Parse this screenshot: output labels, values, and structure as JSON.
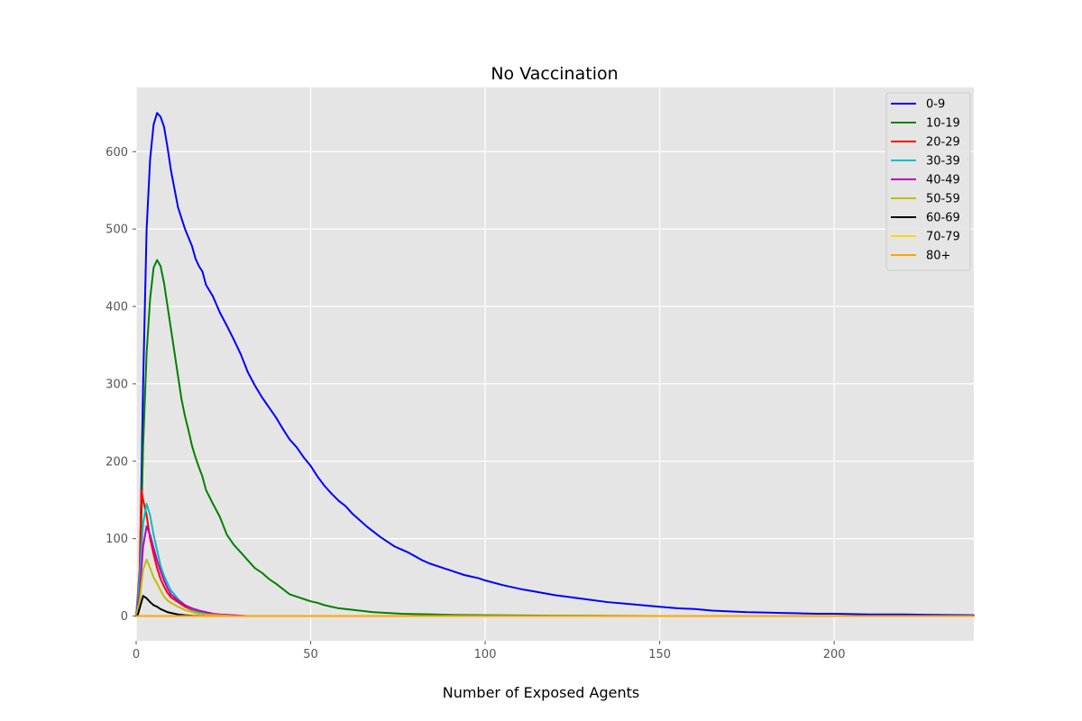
{
  "chart_data": {
    "type": "line",
    "title": "No Vaccination",
    "xlabel": "Number of Exposed Agents",
    "ylabel": "",
    "xlim": [
      0,
      240
    ],
    "ylim": [
      -32,
      683
    ],
    "xticks": [
      0,
      50,
      100,
      150,
      200
    ],
    "yticks": [
      0,
      100,
      200,
      300,
      400,
      500,
      600
    ],
    "grid": true,
    "legend_position": "upper right",
    "plot_background": "#e5e5e5",
    "series": [
      {
        "name": "0-9",
        "color": "#0000ff",
        "points": [
          [
            0,
            0
          ],
          [
            1,
            40
          ],
          [
            2,
            300
          ],
          [
            3,
            500
          ],
          [
            4,
            590
          ],
          [
            5,
            635
          ],
          [
            6,
            650
          ],
          [
            7,
            645
          ],
          [
            8,
            632
          ],
          [
            9,
            605
          ],
          [
            10,
            575
          ],
          [
            12,
            528
          ],
          [
            14,
            500
          ],
          [
            16,
            478
          ],
          [
            17,
            462
          ],
          [
            18,
            452
          ],
          [
            19,
            445
          ],
          [
            20,
            428
          ],
          [
            22,
            413
          ],
          [
            24,
            392
          ],
          [
            26,
            375
          ],
          [
            28,
            357
          ],
          [
            30,
            338
          ],
          [
            32,
            315
          ],
          [
            34,
            298
          ],
          [
            36,
            283
          ],
          [
            38,
            270
          ],
          [
            40,
            257
          ],
          [
            42,
            242
          ],
          [
            44,
            228
          ],
          [
            46,
            218
          ],
          [
            48,
            205
          ],
          [
            50,
            194
          ],
          [
            52,
            180
          ],
          [
            54,
            168
          ],
          [
            56,
            158
          ],
          [
            58,
            149
          ],
          [
            60,
            142
          ],
          [
            62,
            132
          ],
          [
            64,
            124
          ],
          [
            66,
            116
          ],
          [
            68,
            109
          ],
          [
            70,
            102
          ],
          [
            72,
            96
          ],
          [
            74,
            90
          ],
          [
            76,
            86
          ],
          [
            78,
            82
          ],
          [
            80,
            77
          ],
          [
            82,
            72
          ],
          [
            84,
            68
          ],
          [
            86,
            65
          ],
          [
            88,
            62
          ],
          [
            90,
            59
          ],
          [
            92,
            56
          ],
          [
            94,
            53
          ],
          [
            96,
            51
          ],
          [
            98,
            49
          ],
          [
            100,
            46
          ],
          [
            105,
            40
          ],
          [
            110,
            35
          ],
          [
            115,
            31
          ],
          [
            120,
            27
          ],
          [
            125,
            24
          ],
          [
            130,
            21
          ],
          [
            135,
            18
          ],
          [
            140,
            16
          ],
          [
            145,
            14
          ],
          [
            150,
            12
          ],
          [
            155,
            10
          ],
          [
            160,
            9
          ],
          [
            165,
            7
          ],
          [
            170,
            6
          ],
          [
            175,
            5
          ],
          [
            180,
            4.5
          ],
          [
            185,
            4
          ],
          [
            190,
            3.5
          ],
          [
            195,
            3
          ],
          [
            200,
            3
          ],
          [
            205,
            2.5
          ],
          [
            210,
            2
          ],
          [
            220,
            2
          ],
          [
            230,
            1.5
          ],
          [
            240,
            1
          ]
        ]
      },
      {
        "name": "10-19",
        "color": "#008000",
        "points": [
          [
            0,
            0
          ],
          [
            1,
            30
          ],
          [
            2,
            220
          ],
          [
            3,
            340
          ],
          [
            4,
            410
          ],
          [
            5,
            450
          ],
          [
            6,
            460
          ],
          [
            7,
            452
          ],
          [
            8,
            430
          ],
          [
            9,
            400
          ],
          [
            10,
            370
          ],
          [
            11,
            340
          ],
          [
            12,
            310
          ],
          [
            13,
            280
          ],
          [
            14,
            258
          ],
          [
            15,
            240
          ],
          [
            16,
            220
          ],
          [
            17,
            205
          ],
          [
            18,
            192
          ],
          [
            19,
            180
          ],
          [
            20,
            163
          ],
          [
            22,
            145
          ],
          [
            24,
            128
          ],
          [
            26,
            105
          ],
          [
            28,
            92
          ],
          [
            30,
            82
          ],
          [
            32,
            72
          ],
          [
            34,
            62
          ],
          [
            36,
            56
          ],
          [
            38,
            48
          ],
          [
            40,
            42
          ],
          [
            42,
            35
          ],
          [
            44,
            28
          ],
          [
            46,
            25
          ],
          [
            48,
            22
          ],
          [
            50,
            19
          ],
          [
            52,
            17
          ],
          [
            54,
            14
          ],
          [
            56,
            12
          ],
          [
            58,
            10
          ],
          [
            60,
            9
          ],
          [
            64,
            7
          ],
          [
            68,
            5
          ],
          [
            72,
            4
          ],
          [
            76,
            3
          ],
          [
            80,
            2.5
          ],
          [
            85,
            2
          ],
          [
            90,
            1.5
          ],
          [
            100,
            1
          ],
          [
            120,
            0.5
          ],
          [
            150,
            0
          ],
          [
            240,
            0
          ]
        ]
      },
      {
        "name": "20-29",
        "color": "#ff0000",
        "points": [
          [
            0,
            0
          ],
          [
            1,
            60
          ],
          [
            1.5,
            163
          ],
          [
            2,
            150
          ],
          [
            3,
            130
          ],
          [
            4,
            100
          ],
          [
            5,
            80
          ],
          [
            6,
            62
          ],
          [
            7,
            48
          ],
          [
            8,
            38
          ],
          [
            9,
            30
          ],
          [
            10,
            24
          ],
          [
            12,
            18
          ],
          [
            14,
            12
          ],
          [
            16,
            8
          ],
          [
            18,
            5
          ],
          [
            20,
            3
          ],
          [
            22,
            2
          ],
          [
            26,
            1
          ],
          [
            30,
            0
          ],
          [
            240,
            0
          ]
        ]
      },
      {
        "name": "30-39",
        "color": "#00bfbf",
        "points": [
          [
            0,
            0
          ],
          [
            1,
            50
          ],
          [
            2,
            120
          ],
          [
            3,
            145
          ],
          [
            4,
            130
          ],
          [
            5,
            105
          ],
          [
            6,
            85
          ],
          [
            7,
            65
          ],
          [
            8,
            52
          ],
          [
            9,
            42
          ],
          [
            10,
            33
          ],
          [
            12,
            22
          ],
          [
            14,
            14
          ],
          [
            16,
            9
          ],
          [
            18,
            5
          ],
          [
            20,
            3
          ],
          [
            22,
            2
          ],
          [
            26,
            1
          ],
          [
            30,
            0
          ],
          [
            240,
            0
          ]
        ]
      },
      {
        "name": "40-49",
        "color": "#bf00bf",
        "points": [
          [
            0,
            0
          ],
          [
            1,
            30
          ],
          [
            2,
            90
          ],
          [
            3,
            116
          ],
          [
            4,
            105
          ],
          [
            5,
            88
          ],
          [
            6,
            72
          ],
          [
            7,
            58
          ],
          [
            8,
            46
          ],
          [
            9,
            36
          ],
          [
            10,
            28
          ],
          [
            12,
            20
          ],
          [
            14,
            14
          ],
          [
            16,
            10
          ],
          [
            18,
            7
          ],
          [
            20,
            5
          ],
          [
            22,
            3
          ],
          [
            24,
            2
          ],
          [
            28,
            1
          ],
          [
            32,
            0
          ],
          [
            240,
            0
          ]
        ]
      },
      {
        "name": "50-59",
        "color": "#bfbf00",
        "points": [
          [
            0,
            0
          ],
          [
            1,
            20
          ],
          [
            2,
            60
          ],
          [
            3,
            73
          ],
          [
            4,
            62
          ],
          [
            5,
            50
          ],
          [
            6,
            42
          ],
          [
            7,
            33
          ],
          [
            8,
            25
          ],
          [
            9,
            20
          ],
          [
            10,
            17
          ],
          [
            12,
            12
          ],
          [
            14,
            8
          ],
          [
            16,
            5
          ],
          [
            18,
            3
          ],
          [
            20,
            2
          ],
          [
            24,
            1
          ],
          [
            28,
            0
          ],
          [
            240,
            0
          ]
        ]
      },
      {
        "name": "60-69",
        "color": "#000000",
        "points": [
          [
            0,
            0
          ],
          [
            0.5,
            2
          ],
          [
            1,
            10
          ],
          [
            2,
            26
          ],
          [
            3,
            23
          ],
          [
            4,
            18
          ],
          [
            5,
            14
          ],
          [
            6,
            12
          ],
          [
            7,
            9
          ],
          [
            8,
            7
          ],
          [
            9,
            5
          ],
          [
            10,
            4
          ],
          [
            12,
            2
          ],
          [
            14,
            1
          ],
          [
            16,
            0.5
          ],
          [
            20,
            0
          ],
          [
            240,
            0
          ]
        ]
      },
      {
        "name": "70-79",
        "color": "#ffd700",
        "points": [
          [
            0,
            0
          ],
          [
            240,
            0
          ]
        ]
      },
      {
        "name": "80+",
        "color": "#ffa500",
        "points": [
          [
            0,
            0
          ],
          [
            240,
            0
          ]
        ]
      }
    ]
  }
}
